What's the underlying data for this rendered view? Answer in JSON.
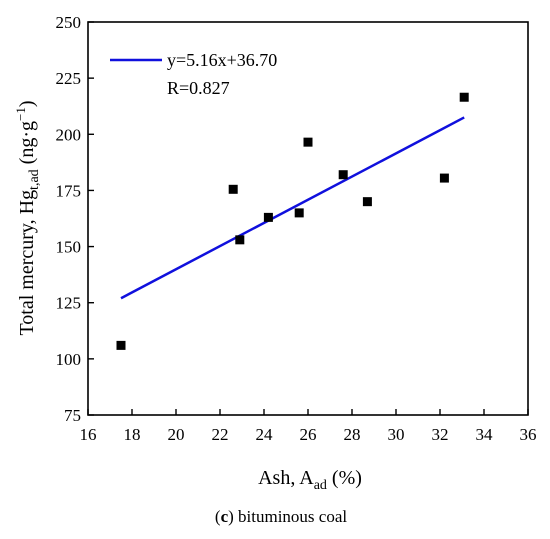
{
  "chart_data": {
    "type": "scatter",
    "xlabel": {
      "main": "Ash, A",
      "sub": "ad",
      "tail": " (%)"
    },
    "ylabel": {
      "main": "Total mercury, Hg",
      "sub": "t,ad",
      "unit_open": " (ng·g",
      "sup": "−1",
      "unit_close": ")"
    },
    "xlim": [
      16,
      36
    ],
    "ylim": [
      75,
      250
    ],
    "xticks": [
      16,
      18,
      20,
      22,
      24,
      26,
      28,
      30,
      32,
      34,
      36
    ],
    "yticks": [
      75,
      100,
      125,
      150,
      175,
      200,
      225,
      250
    ],
    "points": [
      {
        "x": 17.5,
        "y": 106
      },
      {
        "x": 22.6,
        "y": 175.5
      },
      {
        "x": 22.9,
        "y": 153
      },
      {
        "x": 24.2,
        "y": 163
      },
      {
        "x": 25.6,
        "y": 165
      },
      {
        "x": 26.0,
        "y": 196.5
      },
      {
        "x": 27.6,
        "y": 182
      },
      {
        "x": 28.7,
        "y": 170
      },
      {
        "x": 32.2,
        "y": 180.5
      },
      {
        "x": 33.1,
        "y": 216.5
      }
    ],
    "fit": {
      "slope": 5.16,
      "intercept": 36.7,
      "x_range": [
        17.5,
        33.1
      ]
    },
    "legend": {
      "fit_label": "y=5.16x+36.70",
      "r_label": "R=0.827",
      "position": "top-left"
    },
    "colors": {
      "fit_line": "#1010dd",
      "points": "#000000",
      "axes": "#000000"
    },
    "grid": false
  },
  "caption": {
    "letter": "c",
    "text": " bituminous coal"
  }
}
